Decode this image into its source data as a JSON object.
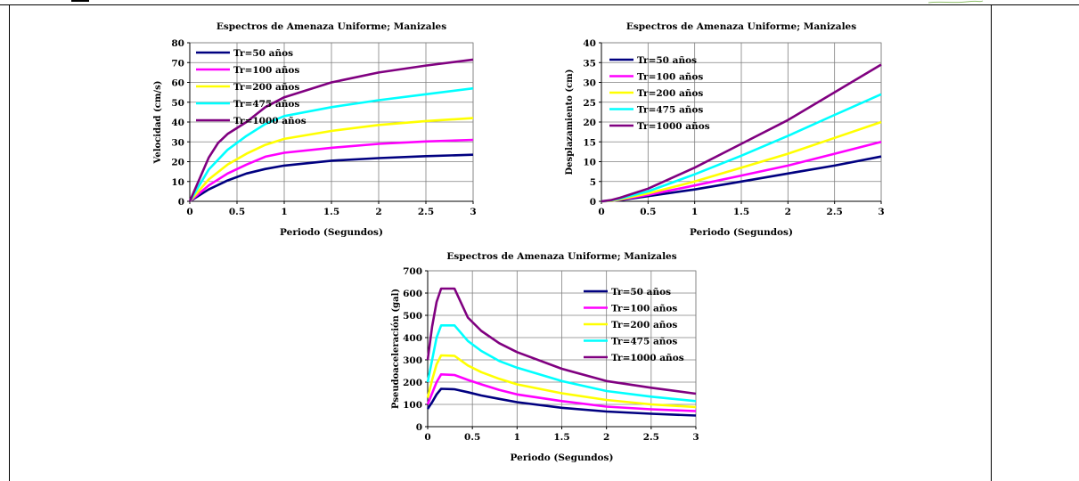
{
  "chart_data": [
    {
      "type": "line",
      "title": "Espectros de Amenaza Uniforme; Manizales",
      "xlabel": "Periodo (Segundos)",
      "ylabel": "Velocidad (cm/s)",
      "xlim": [
        0,
        3
      ],
      "ylim": [
        0,
        80
      ],
      "xticks": [
        0,
        0.5,
        1,
        1.5,
        2,
        2.5,
        3
      ],
      "xtick_labels": [
        "0",
        "0.5",
        "1",
        "1.5",
        "2",
        "2.5",
        "3"
      ],
      "yticks": [
        0,
        10,
        20,
        30,
        40,
        50,
        60,
        70,
        80
      ],
      "ytick_labels": [
        "0",
        "10",
        "20",
        "30",
        "40",
        "50",
        "60",
        "70",
        "80"
      ],
      "grid": true,
      "legend_position": "top-left",
      "series": [
        {
          "name": "Tr=50 años",
          "color": "#000080",
          "x": [
            0,
            0.2,
            0.4,
            0.6,
            0.8,
            1.0,
            1.5,
            2.0,
            2.5,
            3.0
          ],
          "y": [
            0,
            6,
            10.5,
            14,
            16.3,
            18,
            20.5,
            21.8,
            22.8,
            23.5
          ]
        },
        {
          "name": "Tr=100 años",
          "color": "#ff00ff",
          "x": [
            0,
            0.2,
            0.4,
            0.6,
            0.8,
            1.0,
            1.5,
            2.0,
            2.5,
            3.0
          ],
          "y": [
            0,
            8,
            14,
            18.5,
            22.5,
            24.5,
            27,
            29,
            30.2,
            31
          ]
        },
        {
          "name": "Tr=200 años",
          "color": "#ffff00",
          "x": [
            0,
            0.2,
            0.4,
            0.6,
            0.8,
            1.0,
            1.5,
            2.0,
            2.5,
            3.0
          ],
          "y": [
            0,
            11,
            18.5,
            24,
            28.5,
            31.5,
            35.5,
            38.5,
            40.5,
            42
          ]
        },
        {
          "name": "Tr=475 años",
          "color": "#00ffff",
          "x": [
            0,
            0.2,
            0.4,
            0.6,
            0.8,
            1.0,
            1.5,
            2.0,
            2.5,
            3.0
          ],
          "y": [
            0,
            16,
            26,
            33,
            39,
            43,
            47.5,
            51,
            54,
            57
          ]
        },
        {
          "name": "Tr=1000 años",
          "color": "#800080",
          "x": [
            0,
            0.2,
            0.3,
            0.4,
            0.6,
            0.8,
            1.0,
            1.5,
            2.0,
            2.5,
            3.0
          ],
          "y": [
            0,
            22,
            29.5,
            34,
            40,
            47.5,
            52.5,
            60,
            65,
            68.5,
            71.5
          ]
        }
      ]
    },
    {
      "type": "line",
      "title": "Espectros de Amenaza Uniforme; Manizales",
      "xlabel": "Periodo (Segundos)",
      "ylabel": "Desplazamiento (cm)",
      "xlim": [
        0,
        3
      ],
      "ylim": [
        0,
        40
      ],
      "xticks": [
        0,
        0.5,
        1,
        1.5,
        2,
        2.5,
        3
      ],
      "xtick_labels": [
        "0",
        "0.5",
        "1",
        "1.5",
        "2",
        "2.5",
        "3"
      ],
      "yticks": [
        0,
        5,
        10,
        15,
        20,
        25,
        30,
        35,
        40
      ],
      "ytick_labels": [
        "0",
        "5",
        "10",
        "15",
        "20",
        "25",
        "30",
        "35",
        "40"
      ],
      "grid": true,
      "legend_position": "top-left",
      "series": [
        {
          "name": "Tr=50 años",
          "color": "#000080",
          "x": [
            0,
            0.1,
            0.2,
            0.5,
            1.0,
            1.5,
            2.0,
            2.5,
            3.0
          ],
          "y": [
            0,
            0.1,
            0.3,
            1.3,
            3,
            5,
            7,
            9,
            11.3
          ]
        },
        {
          "name": "Tr=100 años",
          "color": "#ff00ff",
          "x": [
            0,
            0.1,
            0.2,
            0.5,
            1.0,
            1.5,
            2.0,
            2.5,
            3.0
          ],
          "y": [
            0,
            0.1,
            0.4,
            1.6,
            4,
            6.5,
            9,
            12,
            15
          ]
        },
        {
          "name": "Tr=200 años",
          "color": "#ffff00",
          "x": [
            0,
            0.1,
            0.2,
            0.5,
            1.0,
            1.5,
            2.0,
            2.5,
            3.0
          ],
          "y": [
            0,
            0.1,
            0.5,
            2,
            5,
            8.5,
            12,
            16,
            20
          ]
        },
        {
          "name": "Tr=475 años",
          "color": "#00ffff",
          "x": [
            0,
            0.1,
            0.2,
            0.5,
            1.0,
            1.5,
            2.0,
            2.5,
            3.0
          ],
          "y": [
            0,
            0.2,
            0.7,
            2.5,
            6.8,
            11.5,
            16.5,
            21.8,
            27
          ]
        },
        {
          "name": "Tr=1000 años",
          "color": "#800080",
          "x": [
            0,
            0.1,
            0.2,
            0.5,
            1.0,
            1.5,
            2.0,
            2.5,
            3.0
          ],
          "y": [
            0,
            0.3,
            0.9,
            3.2,
            8.5,
            14.5,
            20.5,
            27.5,
            34.5
          ]
        }
      ]
    },
    {
      "type": "line",
      "title": "Espectros de Amenaza Uniforme; Manizales",
      "xlabel": "Periodo (Segundos)",
      "ylabel": "Pseudoaceleración (gal)",
      "xlim": [
        0,
        3
      ],
      "ylim": [
        0,
        700
      ],
      "xticks": [
        0,
        0.5,
        1,
        1.5,
        2,
        2.5,
        3
      ],
      "xtick_labels": [
        "0",
        "0.5",
        "1",
        "1.5",
        "2",
        "2.5",
        "3"
      ],
      "yticks": [
        0,
        100,
        200,
        300,
        400,
        500,
        600,
        700
      ],
      "ytick_labels": [
        "0",
        "100",
        "200",
        "300",
        "400",
        "500",
        "600",
        "700"
      ],
      "grid": true,
      "legend_position": "top-right",
      "series": [
        {
          "name": "Tr=50 años",
          "color": "#000080",
          "x": [
            0,
            0.05,
            0.1,
            0.15,
            0.3,
            0.45,
            0.6,
            0.8,
            1.0,
            1.5,
            2.0,
            2.5,
            3.0
          ],
          "y": [
            80,
            110,
            145,
            170,
            168,
            155,
            140,
            125,
            110,
            85,
            68,
            58,
            50
          ]
        },
        {
          "name": "Tr=100 años",
          "color": "#ff00ff",
          "x": [
            0,
            0.05,
            0.1,
            0.15,
            0.3,
            0.45,
            0.6,
            0.8,
            1.0,
            1.5,
            2.0,
            2.5,
            3.0
          ],
          "y": [
            100,
            150,
            200,
            235,
            232,
            210,
            190,
            165,
            145,
            115,
            90,
            78,
            70
          ]
        },
        {
          "name": "Tr=200 años",
          "color": "#ffff00",
          "x": [
            0,
            0.05,
            0.1,
            0.15,
            0.3,
            0.45,
            0.6,
            0.8,
            1.0,
            1.5,
            2.0,
            2.5,
            3.0
          ],
          "y": [
            130,
            210,
            280,
            320,
            318,
            275,
            245,
            215,
            190,
            150,
            120,
            100,
            88
          ]
        },
        {
          "name": "Tr=475 años",
          "color": "#00ffff",
          "x": [
            0,
            0.05,
            0.1,
            0.15,
            0.3,
            0.45,
            0.6,
            0.8,
            1.0,
            1.5,
            2.0,
            2.5,
            3.0
          ],
          "y": [
            200,
            300,
            400,
            455,
            455,
            385,
            340,
            295,
            265,
            205,
            160,
            135,
            115
          ]
        },
        {
          "name": "Tr=1000 años",
          "color": "#800080",
          "x": [
            0,
            0.05,
            0.1,
            0.15,
            0.3,
            0.45,
            0.6,
            0.8,
            1.0,
            1.5,
            2.0,
            2.5,
            3.0
          ],
          "y": [
            300,
            450,
            560,
            620,
            620,
            490,
            430,
            375,
            335,
            260,
            205,
            175,
            148
          ]
        }
      ]
    }
  ]
}
